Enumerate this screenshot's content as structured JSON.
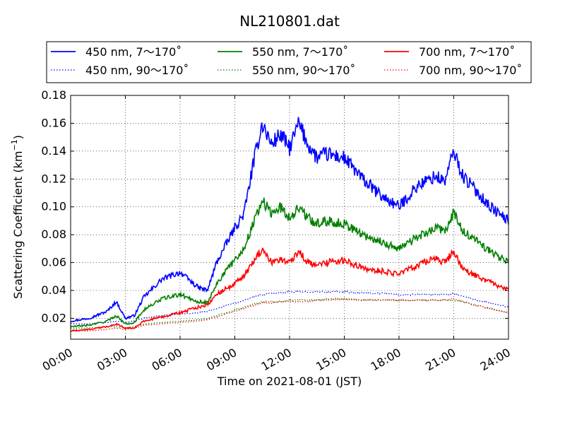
{
  "chart_data": {
    "type": "line",
    "title": "NL210801.dat",
    "xlabel": "Time on 2021-08-01 (JST)",
    "ylabel": {
      "prefix": "Scattering Coefficient (km",
      "sup": "−1",
      "suffix": ")"
    },
    "xlim": [
      "00:00",
      "24:00"
    ],
    "ylim": [
      0.005,
      0.18
    ],
    "xticks": [
      "00:00",
      "03:00",
      "06:00",
      "09:00",
      "12:00",
      "15:00",
      "18:00",
      "21:00",
      "24:00"
    ],
    "yticks": [
      "0.02",
      "0.04",
      "0.06",
      "0.08",
      "0.10",
      "0.12",
      "0.14",
      "0.16",
      "0.18"
    ],
    "grid": true,
    "legend_position": "top, above plot, 3 columns",
    "x": [
      "00:00",
      "01:00",
      "02:00",
      "02:30",
      "03:00",
      "03:30",
      "04:00",
      "05:00",
      "06:00",
      "07:00",
      "07:30",
      "08:00",
      "09:00",
      "09:30",
      "10:00",
      "10:30",
      "11:00",
      "11:30",
      "12:00",
      "12:30",
      "13:00",
      "13:30",
      "14:00",
      "15:00",
      "16:00",
      "17:00",
      "18:00",
      "19:00",
      "20:00",
      "20:30",
      "21:00",
      "21:30",
      "22:00",
      "23:00",
      "24:00"
    ],
    "series": [
      {
        "name": "450 nm, 7～170˚",
        "color": "#0000ff",
        "style": "solid",
        "values": [
          0.018,
          0.02,
          0.025,
          0.032,
          0.02,
          0.022,
          0.035,
          0.048,
          0.053,
          0.042,
          0.04,
          0.06,
          0.085,
          0.095,
          0.13,
          0.16,
          0.145,
          0.152,
          0.142,
          0.16,
          0.145,
          0.135,
          0.138,
          0.135,
          0.12,
          0.108,
          0.1,
          0.115,
          0.122,
          0.118,
          0.14,
          0.122,
          0.115,
          0.1,
          0.09
        ]
      },
      {
        "name": "450 nm, 90～170˚",
        "color": "#0000ff",
        "style": "dotted",
        "values": [
          0.016,
          0.016,
          0.017,
          0.018,
          0.017,
          0.018,
          0.02,
          0.022,
          0.023,
          0.024,
          0.025,
          0.027,
          0.031,
          0.033,
          0.035,
          0.037,
          0.038,
          0.038,
          0.039,
          0.039,
          0.039,
          0.039,
          0.039,
          0.039,
          0.038,
          0.038,
          0.037,
          0.037,
          0.037,
          0.037,
          0.038,
          0.036,
          0.034,
          0.031,
          0.028
        ]
      },
      {
        "name": "550 nm, 7～170˚",
        "color": "#008000",
        "style": "solid",
        "values": [
          0.014,
          0.015,
          0.018,
          0.022,
          0.016,
          0.017,
          0.026,
          0.034,
          0.037,
          0.032,
          0.031,
          0.045,
          0.062,
          0.07,
          0.088,
          0.105,
          0.095,
          0.1,
          0.092,
          0.1,
          0.092,
          0.088,
          0.09,
          0.088,
          0.08,
          0.075,
          0.07,
          0.078,
          0.085,
          0.082,
          0.096,
          0.082,
          0.078,
          0.068,
          0.06
        ]
      },
      {
        "name": "550 nm, 90～170˚",
        "color": "#008000",
        "style": "dotted",
        "values": [
          0.013,
          0.013,
          0.014,
          0.014,
          0.013,
          0.014,
          0.016,
          0.017,
          0.018,
          0.019,
          0.02,
          0.022,
          0.026,
          0.028,
          0.03,
          0.032,
          0.032,
          0.032,
          0.033,
          0.033,
          0.033,
          0.033,
          0.034,
          0.034,
          0.033,
          0.033,
          0.033,
          0.033,
          0.033,
          0.033,
          0.033,
          0.032,
          0.03,
          0.027,
          0.024
        ]
      },
      {
        "name": "700 nm, 7～170˚",
        "color": "#ff0000",
        "style": "solid",
        "values": [
          0.011,
          0.012,
          0.014,
          0.016,
          0.013,
          0.013,
          0.018,
          0.021,
          0.024,
          0.028,
          0.03,
          0.037,
          0.045,
          0.05,
          0.06,
          0.07,
          0.06,
          0.063,
          0.06,
          0.068,
          0.06,
          0.058,
          0.06,
          0.062,
          0.056,
          0.054,
          0.052,
          0.058,
          0.063,
          0.06,
          0.068,
          0.055,
          0.052,
          0.046,
          0.04
        ]
      },
      {
        "name": "700 nm, 90～170˚",
        "color": "#ff0000",
        "style": "dotted",
        "values": [
          0.011,
          0.011,
          0.012,
          0.013,
          0.012,
          0.013,
          0.015,
          0.016,
          0.017,
          0.018,
          0.019,
          0.021,
          0.025,
          0.027,
          0.029,
          0.031,
          0.031,
          0.032,
          0.032,
          0.032,
          0.032,
          0.033,
          0.033,
          0.034,
          0.033,
          0.033,
          0.033,
          0.033,
          0.033,
          0.033,
          0.034,
          0.032,
          0.03,
          0.027,
          0.024
        ]
      }
    ]
  }
}
